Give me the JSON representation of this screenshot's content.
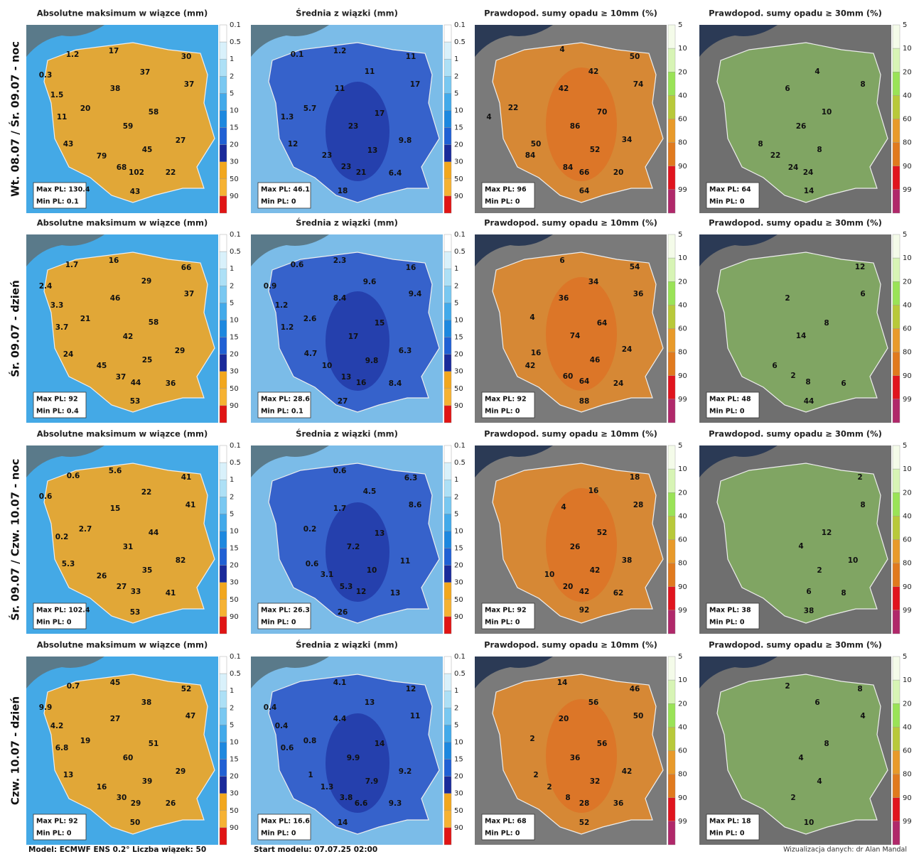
{
  "rows": [
    {
      "label": "Wt. 08.07 / Śr. 09.07 - noc",
      "panels": [
        {
          "title": "Absolutne maksimum w wiązce (mm)",
          "labels": [
            1.2,
            17,
            30,
            0.3,
            37,
            38,
            37,
            1.5,
            20,
            58,
            11,
            59,
            27,
            43,
            45,
            79,
            68,
            102,
            22,
            43
          ],
          "max": "Max PL: 130.4",
          "min": "Min PL: 0.1"
        },
        {
          "title": "Średnia z wiązki (mm)",
          "labels": [
            0.1,
            1.2,
            11,
            11,
            17,
            11,
            5.7,
            17,
            1.3,
            23,
            9.8,
            12,
            13,
            23,
            23,
            21,
            6.4,
            18
          ],
          "max": "Max PL: 46.1",
          "min": "Min PL: 0"
        },
        {
          "title": "Prawdopod. sumy opadu ≥ 10mm (%)",
          "labels": [
            4,
            50,
            42,
            74,
            42,
            22,
            70,
            4,
            86,
            34,
            50,
            52,
            84,
            84,
            66,
            20,
            64
          ],
          "max": "Max PL: 96",
          "min": "Min PL: 0"
        },
        {
          "title": "Prawdopod. sumy opadu ≥ 30mm (%)",
          "labels": [
            4,
            8,
            6,
            10,
            26,
            8,
            8,
            22,
            24,
            24,
            14
          ],
          "max": "Max PL: 64",
          "min": "Min PL: 0"
        }
      ]
    },
    {
      "label": "Śr. 09.07 - dzień",
      "panels": [
        {
          "title": "Absolutne maksimum w wiązce (mm)",
          "labels": [
            1.7,
            16,
            66,
            2.4,
            29,
            37,
            46,
            3.3,
            21,
            58,
            3.7,
            42,
            29,
            24,
            25,
            45,
            37,
            44,
            36,
            53
          ],
          "max": "Max PL: 92",
          "min": "Min PL: 0.4"
        },
        {
          "title": "Średnia z wiązki (mm)",
          "labels": [
            0.6,
            2.3,
            16,
            0.9,
            9.6,
            9.4,
            8.4,
            1.2,
            2.6,
            15,
            1.2,
            17,
            6.3,
            4.7,
            9.8,
            10,
            13,
            16,
            8.4,
            27
          ],
          "max": "Max PL: 28.6",
          "min": "Min PL: 0.1"
        },
        {
          "title": "Prawdopod. sumy opadu ≥ 10mm (%)",
          "labels": [
            6,
            54,
            34,
            36,
            36,
            4,
            64,
            74,
            24,
            16,
            46,
            42,
            60,
            64,
            24,
            88
          ],
          "max": "Max PL: 92",
          "min": "Min PL: 0"
        },
        {
          "title": "Prawdopod. sumy opadu ≥ 30mm (%)",
          "labels": [
            12,
            6,
            2,
            8,
            14,
            6,
            2,
            8,
            6,
            44
          ],
          "max": "Max PL: 48",
          "min": "Min PL: 0"
        }
      ]
    },
    {
      "label": "Śr. 09.07 / Czw. 10.07 - noc",
      "panels": [
        {
          "title": "Absolutne maksimum w wiązce (mm)",
          "labels": [
            0.6,
            5.6,
            41,
            0.6,
            22,
            41,
            15,
            2.7,
            44,
            0.2,
            31,
            82,
            5.3,
            35,
            26,
            27,
            33,
            41,
            53
          ],
          "max": "Max PL: 102.4",
          "min": "Min PL: 0"
        },
        {
          "title": "Średnia z wiązki (mm)",
          "labels": [
            0.6,
            6.3,
            4.5,
            8.6,
            1.7,
            0.2,
            13,
            7.2,
            11,
            0.6,
            3.1,
            10,
            5.3,
            12,
            13,
            26
          ],
          "max": "Max PL: 26.3",
          "min": "Min PL: 0"
        },
        {
          "title": "Prawdopod. sumy opadu ≥ 10mm (%)",
          "labels": [
            18,
            16,
            28,
            4,
            52,
            26,
            38,
            42,
            10,
            20,
            42,
            62,
            92
          ],
          "max": "Max PL: 92",
          "min": "Min PL: 0"
        },
        {
          "title": "Prawdopod. sumy opadu ≥ 30mm (%)",
          "labels": [
            2,
            8,
            12,
            4,
            10,
            2,
            6,
            8,
            38
          ],
          "max": "Max PL: 38",
          "min": "Min PL: 0"
        }
      ]
    },
    {
      "label": "Czw. 10.07 - dzień",
      "panels": [
        {
          "title": "Absolutne maksimum w wiązce (mm)",
          "labels": [
            0.7,
            45,
            52,
            9.9,
            38,
            47,
            27,
            4.2,
            51,
            6.8,
            19,
            60,
            29,
            13,
            39,
            16,
            30,
            29,
            26,
            50
          ],
          "max": "Max PL: 92",
          "min": "Min PL: 0"
        },
        {
          "title": "Średnia z wiązki (mm)",
          "labels": [
            4.1,
            12,
            0.4,
            13,
            11,
            0.4,
            4.4,
            0.8,
            0.6,
            14,
            9.9,
            9.2,
            1,
            1.3,
            7.9,
            3.8,
            6.6,
            9.3,
            14
          ],
          "max": "Max PL: 16.6",
          "min": "Min PL: 0"
        },
        {
          "title": "Prawdopod. sumy opadu ≥ 10mm (%)",
          "labels": [
            14,
            46,
            56,
            50,
            20,
            2,
            56,
            36,
            42,
            2,
            32,
            2,
            8,
            28,
            36,
            52
          ],
          "max": "Max PL: 68",
          "min": "Min PL: 0"
        },
        {
          "title": "Prawdopod. sumy opadu ≥ 30mm (%)",
          "labels": [
            2,
            8,
            6,
            4,
            8,
            4,
            4,
            2,
            10
          ],
          "max": "Max PL: 18",
          "min": "Min PL: 0"
        }
      ]
    }
  ],
  "scales": {
    "mm": [
      0.1,
      0.5,
      1,
      2,
      5,
      10,
      15,
      20,
      30,
      50,
      90
    ],
    "pct": [
      5,
      10,
      20,
      40,
      60,
      80,
      90,
      99
    ]
  },
  "footer": {
    "model": "Model: ECMWF ENS 0.2° Liczba wiązek: 50",
    "start": "Start modelu: 07.07.25 02:00",
    "credit": "Wizualizacja danych: dr Alan Mandal"
  }
}
